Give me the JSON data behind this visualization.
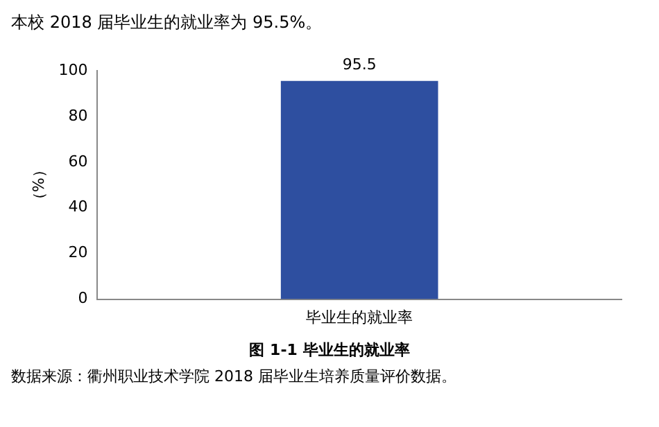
{
  "chart_data": {
    "type": "bar",
    "title": "图 1-1    毕业生的就业率",
    "ylabel": "（%）",
    "annotations": [
      "本校 2018 届毕业生的就业率为 95.5%。",
      "数据来源：衢州职业技术学院 2018 届毕业生培养质量评价数据。"
    ],
    "categories": [
      "毕业生的就业率"
    ],
    "values": [
      95.5
    ],
    "color": "#2e4fa0",
    "ylim": [
      0,
      100
    ],
    "yticks": [
      0,
      20,
      40,
      60,
      80,
      100
    ],
    "data_labels": true,
    "grid": false,
    "legend": false
  }
}
